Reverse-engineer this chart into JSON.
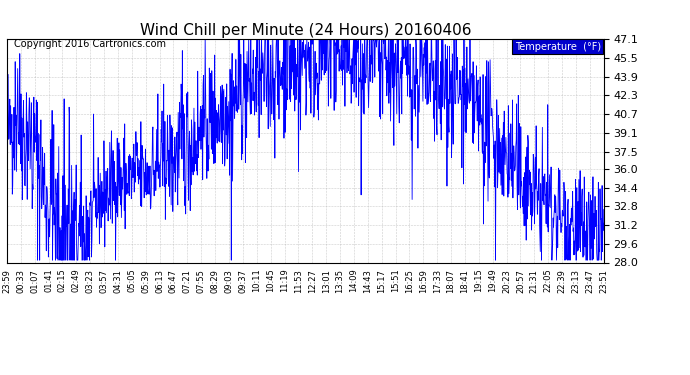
{
  "title": "Wind Chill per Minute (24 Hours) 20160406",
  "copyright": "Copyright 2016 Cartronics.com",
  "legend_label": "Temperature  (°F)",
  "line_color": "#0000ff",
  "background_color": "#ffffff",
  "plot_bg_color": "#ffffff",
  "grid_color": "#aaaaaa",
  "yticks": [
    28.0,
    29.6,
    31.2,
    32.8,
    34.4,
    36.0,
    37.5,
    39.1,
    40.7,
    42.3,
    43.9,
    45.5,
    47.1
  ],
  "ymin": 28.0,
  "ymax": 47.1,
  "xtick_labels": [
    "23:59",
    "00:33",
    "01:07",
    "01:41",
    "02:15",
    "02:49",
    "03:23",
    "03:57",
    "04:31",
    "05:05",
    "05:39",
    "06:13",
    "06:47",
    "07:21",
    "07:55",
    "08:29",
    "09:03",
    "09:37",
    "10:11",
    "10:45",
    "11:19",
    "11:53",
    "12:27",
    "13:01",
    "13:35",
    "14:09",
    "14:43",
    "15:17",
    "15:51",
    "16:25",
    "16:59",
    "17:33",
    "18:07",
    "18:41",
    "19:15",
    "19:49",
    "20:23",
    "20:57",
    "21:31",
    "22:05",
    "22:39",
    "23:13",
    "23:47",
    "23:51"
  ],
  "legend_bg": "#0000cc",
  "legend_text_color": "#ffffff",
  "ytick_fontsize": 8,
  "xtick_fontsize": 6,
  "title_fontsize": 11,
  "copyright_fontsize": 7
}
